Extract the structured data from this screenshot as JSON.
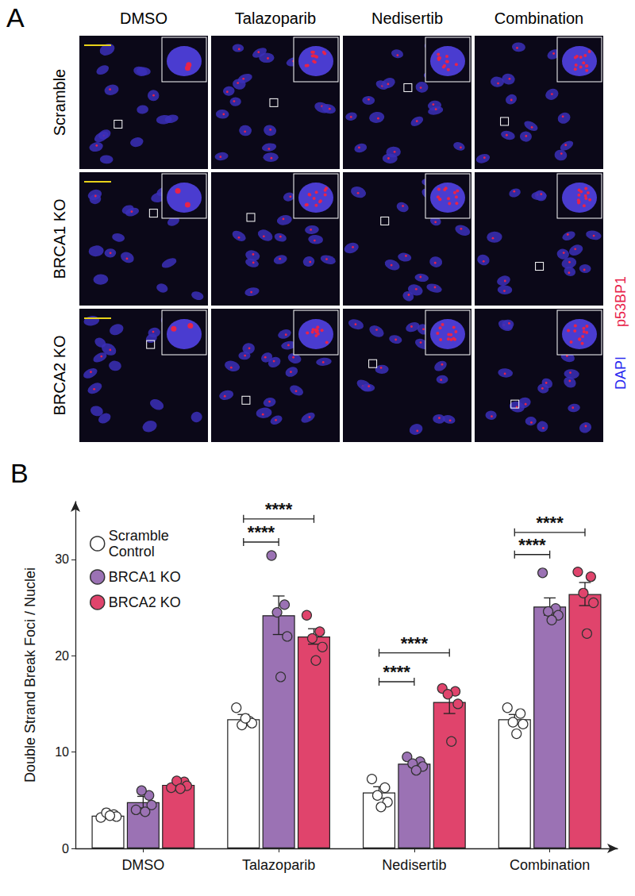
{
  "figure": {
    "panel_a": {
      "letter": "A",
      "columns": [
        "DMSO",
        "Talazoparib",
        "Nedisertib",
        "Combination"
      ],
      "rows": [
        "Scramble",
        "BRCA1 KO",
        "BRCA2 KO"
      ],
      "stains": [
        {
          "label": "p53BP1",
          "color": "#e8234a"
        },
        {
          "label": "DAPI",
          "color": "#2a2af0"
        }
      ]
    }
  },
  "chart_data": {
    "type": "bar",
    "panel_label": "B",
    "y_label": "Double Strand Break Foci / Nuclei",
    "categories": [
      "DMSO",
      "Talazoparib",
      "Nedisertib",
      "Combination"
    ],
    "ylim": [
      0,
      36
    ],
    "yticks": [
      0,
      10,
      20,
      30
    ],
    "grid": false,
    "legend": "top-left",
    "series": [
      {
        "name": "Scramble Control",
        "color": "#ffffff",
        "values": [
          3.4,
          13.4,
          5.8,
          13.4
        ],
        "errors": [
          0.3,
          0.5,
          0.6,
          0.5
        ],
        "points": [
          [
            3.2,
            3.5,
            3.7,
            3.3,
            3.4
          ],
          [
            14.6,
            13.2,
            12.8,
            13.0,
            13.5
          ],
          [
            7.2,
            6.3,
            5.5,
            4.8,
            4.3
          ],
          [
            14.6,
            14.0,
            13.1,
            12.9,
            11.9
          ]
        ]
      },
      {
        "name": "BRCA1 KO",
        "color": "#9b72b4",
        "values": [
          4.8,
          24.2,
          8.8,
          25.1
        ],
        "errors": [
          0.6,
          2.0,
          0.3,
          0.9
        ],
        "points": [
          [
            4.0,
            5.5,
            6.0,
            4.5,
            3.8
          ],
          [
            30.4,
            25.3,
            24.5,
            22.0,
            17.8
          ],
          [
            9.5,
            9.0,
            8.8,
            8.5,
            8.1
          ],
          [
            28.6,
            24.9,
            24.6,
            24.2,
            23.7
          ]
        ]
      },
      {
        "name": "BRCA2 KO",
        "color": "#e0446c",
        "values": [
          6.6,
          22.0,
          15.2,
          26.4
        ],
        "errors": [
          0.3,
          0.8,
          1.2,
          1.2
        ],
        "points": [
          [
            6.3,
            6.9,
            7.0,
            6.5,
            6.2
          ],
          [
            24.2,
            22.5,
            21.8,
            20.9,
            19.5
          ],
          [
            16.6,
            16.3,
            16.0,
            15.0,
            11.1
          ],
          [
            28.7,
            28.2,
            26.5,
            25.5,
            22.3
          ]
        ]
      }
    ],
    "significance": [
      {
        "category": "Talazoparib",
        "from": "Scramble Control",
        "to": "BRCA1 KO",
        "y": 31.8,
        "label": "****"
      },
      {
        "category": "Talazoparib",
        "from": "Scramble Control",
        "to": "BRCA2 KO",
        "y": 34.2,
        "label": "****"
      },
      {
        "category": "Nedisertib",
        "from": "Scramble Control",
        "to": "BRCA1 KO",
        "y": 17.3,
        "label": "****"
      },
      {
        "category": "Nedisertib",
        "from": "Scramble Control",
        "to": "BRCA2 KO",
        "y": 20.3,
        "label": "****"
      },
      {
        "category": "Combination",
        "from": "Scramble Control",
        "to": "BRCA1 KO",
        "y": 30.5,
        "label": "****"
      },
      {
        "category": "Combination",
        "from": "Scramble Control",
        "to": "BRCA2 KO",
        "y": 32.8,
        "label": "****"
      }
    ]
  }
}
